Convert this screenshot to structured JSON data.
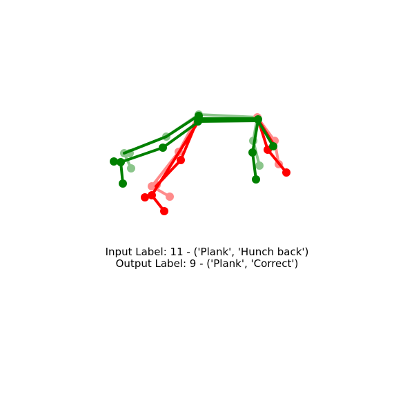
{
  "caption": {
    "input_label": "Input Label: 11 - ('Plank', 'Hunch back')",
    "output_label": "Output Label: 9 - ('Plank', 'Correct')"
  },
  "colors": {
    "correct": "#008000",
    "error": "#ff0000"
  }
}
